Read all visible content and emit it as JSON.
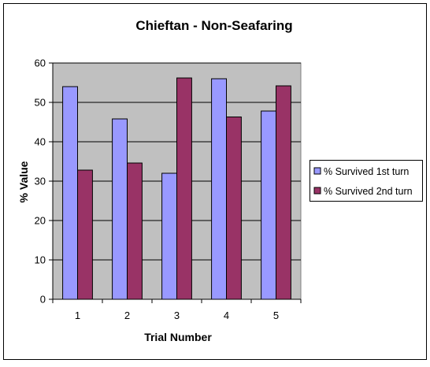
{
  "chart_data": {
    "type": "bar",
    "title": "Chieftan - Non-Seafaring",
    "xlabel": "Trial Number",
    "ylabel": "% Value",
    "categories": [
      "1",
      "2",
      "3",
      "4",
      "5"
    ],
    "ylim": [
      0,
      60
    ],
    "yticks": [
      "0",
      "10",
      "20",
      "30",
      "40",
      "50",
      "60"
    ],
    "grid": true,
    "legend_position": "right",
    "series": [
      {
        "name": "% Survived 1st turn",
        "color": "#9999ff",
        "values": [
          54,
          45.8,
          32,
          56,
          47.8
        ]
      },
      {
        "name": "% Survived 2nd turn",
        "color": "#993366",
        "values": [
          32.8,
          34.6,
          56.2,
          46.3,
          54.2
        ]
      }
    ]
  },
  "colors": {
    "plot_area": "#c0c0c0",
    "gridline": "#000000",
    "border": "#000000"
  }
}
